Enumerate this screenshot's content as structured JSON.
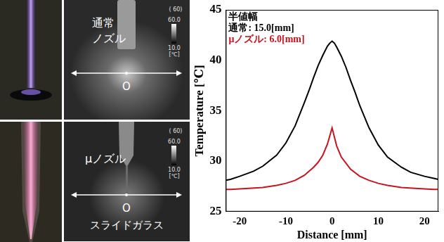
{
  "panels": [
    {
      "nozzle_label": [
        "通常",
        "ノズル"
      ],
      "origin_label": "O",
      "colorbar": {
        "header": "( 60)",
        "unit": "[℃]",
        "range": [
          10,
          60
        ],
        "ticks": [
          {
            "value": 60,
            "label": "60.0"
          },
          {
            "value": 10,
            "label": "10.0"
          }
        ]
      }
    },
    {
      "nozzle_label": [
        "μノズル"
      ],
      "origin_label": "O",
      "surface_label": "スライドガラス",
      "colorbar": {
        "header": "( 60)",
        "unit": "[℃]",
        "range": [
          10,
          60
        ],
        "ticks": [
          {
            "value": 60,
            "label": "60.0"
          },
          {
            "value": 10,
            "label": "10.0"
          }
        ]
      }
    }
  ],
  "chart_data": {
    "type": "line",
    "x_label": "Distance [mm]",
    "y_label": "Temperature [℃]",
    "xlim": [
      -23,
      23
    ],
    "xticks": [
      -20,
      -10,
      0,
      10,
      20
    ],
    "ylim": [
      25,
      45
    ],
    "yticks": [
      25,
      30,
      35,
      40,
      45
    ],
    "grid": false,
    "annotations": [
      {
        "text": "半値幅",
        "color": "#000000"
      },
      {
        "text": "通常: 15.0[mm]",
        "color": "#000000"
      },
      {
        "text": "μノズル: 6.0[mm]",
        "color": "#c8141e"
      }
    ],
    "series": [
      {
        "color": "#000000",
        "x": [
          -23,
          -22,
          -20,
          -17,
          -15,
          -12,
          -10,
          -8,
          -6,
          -5,
          -4,
          -3,
          -2,
          -1,
          -0.5,
          0,
          0.5,
          1,
          2,
          3,
          4,
          5,
          6,
          8,
          10,
          12,
          15,
          17,
          20,
          22,
          23
        ],
        "values": [
          28.1,
          28.2,
          28.5,
          29.0,
          29.5,
          30.6,
          31.8,
          33.5,
          35.8,
          37.0,
          38.3,
          39.5,
          40.5,
          41.4,
          41.7,
          41.9,
          41.7,
          41.3,
          40.4,
          39.3,
          38.0,
          36.8,
          35.5,
          33.3,
          31.6,
          30.4,
          29.4,
          28.9,
          28.5,
          28.3,
          28.2
        ]
      },
      {
        "color": "#c8141e",
        "x": [
          -23,
          -22,
          -18,
          -15,
          -12,
          -10,
          -8,
          -6,
          -4,
          -3,
          -2,
          -1,
          -0.5,
          0,
          0.5,
          1,
          2,
          3,
          4,
          6,
          8,
          10,
          12,
          15,
          18,
          22,
          23
        ],
        "values": [
          27.2,
          27.2,
          27.3,
          27.4,
          27.6,
          27.8,
          28.1,
          28.6,
          29.4,
          29.9,
          30.6,
          31.7,
          32.5,
          33.3,
          32.4,
          31.5,
          30.4,
          29.8,
          29.2,
          28.5,
          28.1,
          27.8,
          27.6,
          27.4,
          27.3,
          27.2,
          27.2
        ]
      }
    ]
  }
}
